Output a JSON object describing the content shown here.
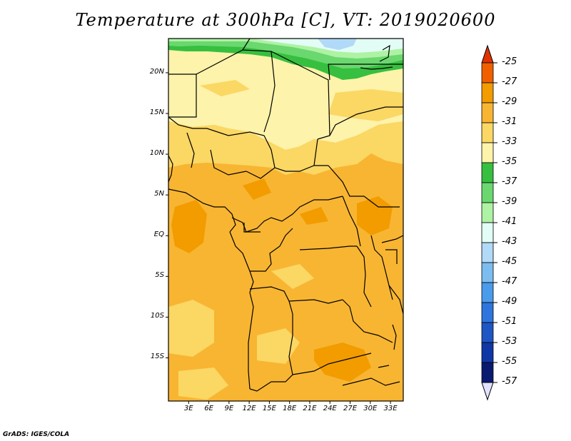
{
  "title": "Temperature at 300hPa [C], VT: 2019020600",
  "footer": "GrADS: IGES/COLA",
  "map": {
    "lat_ticks": [
      {
        "label": "20N",
        "lat": 20
      },
      {
        "label": "15N",
        "lat": 15
      },
      {
        "label": "10N",
        "lat": 10
      },
      {
        "label": "5N",
        "lat": 5
      },
      {
        "label": "EQ",
        "lat": 0
      },
      {
        "label": "5S",
        "lat": -5
      },
      {
        "label": "10S",
        "lat": -10
      },
      {
        "label": "15S",
        "lat": -15
      }
    ],
    "lon_ticks": [
      {
        "label": "3E",
        "lon": 3
      },
      {
        "label": "6E",
        "lon": 6
      },
      {
        "label": "9E",
        "lon": 9
      },
      {
        "label": "12E",
        "lon": 12
      },
      {
        "label": "15E",
        "lon": 15
      },
      {
        "label": "18E",
        "lon": 18
      },
      {
        "label": "21E",
        "lon": 21
      },
      {
        "label": "24E",
        "lon": 24
      },
      {
        "label": "27E",
        "lon": 27
      },
      {
        "label": "30E",
        "lon": 30
      },
      {
        "label": "33E",
        "lon": 33
      }
    ]
  },
  "colorbar": {
    "labels": [
      "-25",
      "-27",
      "-29",
      "-31",
      "-33",
      "-35",
      "-37",
      "-39",
      "-41",
      "-43",
      "-45",
      "-47",
      "-49",
      "-51",
      "-53",
      "-55",
      "-57"
    ],
    "colors": [
      "#e03200",
      "#f06000",
      "#f29c00",
      "#f8b532",
      "#fbd764",
      "#fdf3aa",
      "#37bf3f",
      "#6ad86e",
      "#aef2a4",
      "#e2fdf6",
      "#b1d9f8",
      "#7cbdf0",
      "#4a9bec",
      "#2e76dd",
      "#1e56c3",
      "#0f37a6",
      "#0a1a70"
    ],
    "top_color": "#e03200",
    "bottom_color": "#e2e2ff"
  },
  "colors": {
    "ocean_warm": "#f6b03a",
    "mid_orange": "#f8b532",
    "light_orange": "#fbd764",
    "pale_yellow": "#fdf3aa",
    "green_dark": "#37bf3f",
    "green_mid": "#6ad86e",
    "green_light": "#aef2a4",
    "cyan_light": "#e2fdf6",
    "blue_light": "#b1d9f8",
    "hot_orange": "#f29c00"
  }
}
